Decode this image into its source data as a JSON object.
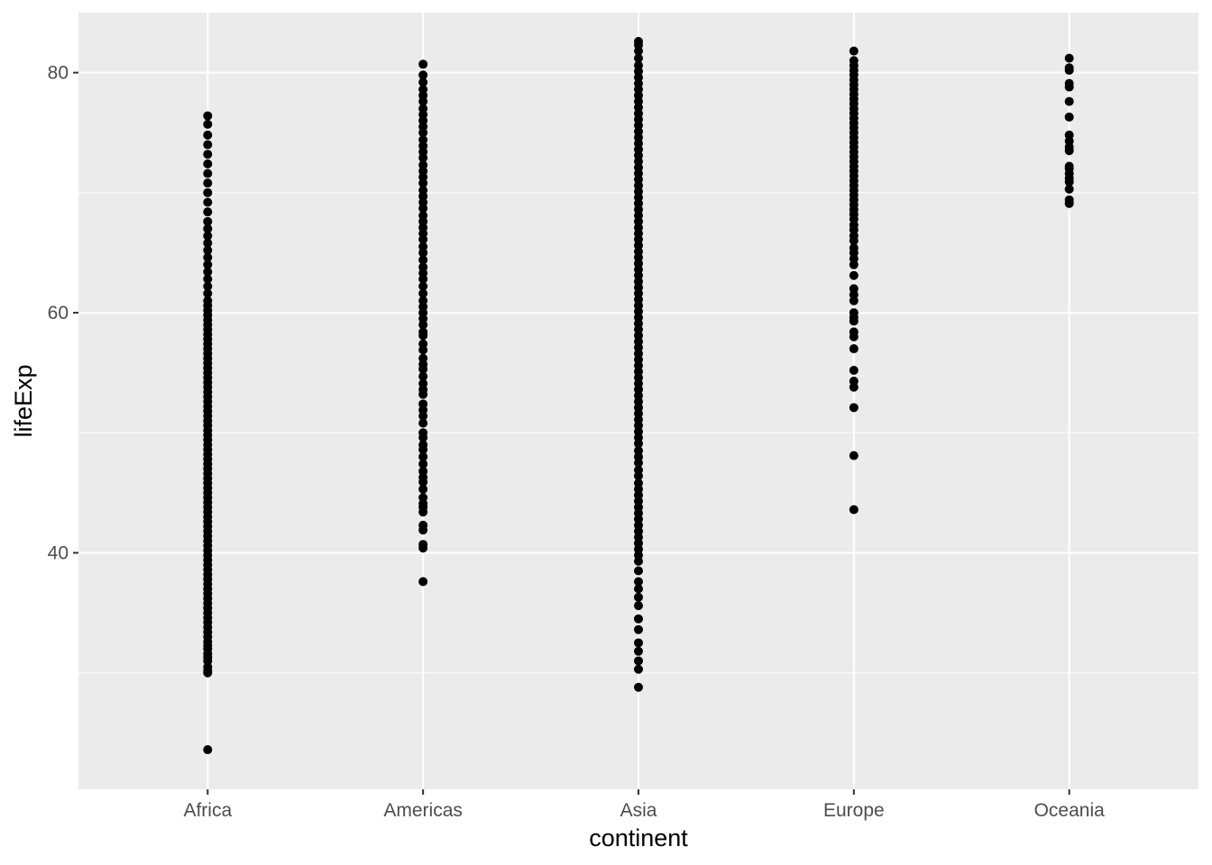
{
  "chart_data": {
    "type": "scatter",
    "title": "",
    "xlabel": "continent",
    "ylabel": "lifeExp",
    "x_scale": "categorical",
    "categories": [
      "Africa",
      "Americas",
      "Asia",
      "Europe",
      "Oceania"
    ],
    "ylim": [
      20.3,
      85.0
    ],
    "y_ticks": [
      40,
      60,
      80
    ],
    "y_tick_labels": [
      "40",
      "60",
      "80"
    ],
    "grid": true,
    "legend": "none",
    "theme": "grey panel with white gridlines",
    "colors": {
      "panel": "#ebebeb",
      "grid": "#ffffff",
      "points": "#000000",
      "tick_text": "#4d4d4d"
    },
    "series": [
      {
        "category": "Africa",
        "values": [
          23.6,
          30.0,
          30.2,
          30.5,
          31.0,
          31.3,
          31.6,
          32.0,
          32.3,
          32.6,
          33.0,
          33.4,
          33.8,
          34.2,
          34.6,
          35.0,
          35.4,
          35.8,
          36.2,
          36.6,
          37.0,
          37.4,
          37.8,
          38.2,
          38.6,
          39.0,
          39.4,
          39.8,
          40.2,
          40.6,
          41.0,
          41.4,
          41.8,
          42.2,
          42.6,
          43.0,
          43.4,
          43.8,
          44.2,
          44.6,
          45.0,
          45.4,
          45.8,
          46.2,
          46.6,
          47.0,
          47.4,
          47.8,
          48.2,
          48.6,
          49.0,
          49.4,
          49.8,
          50.2,
          50.6,
          51.0,
          51.4,
          51.8,
          52.2,
          52.6,
          53.0,
          53.4,
          53.8,
          54.2,
          54.6,
          55.0,
          55.4,
          55.8,
          56.2,
          56.6,
          57.0,
          57.4,
          57.8,
          58.2,
          58.6,
          59.0,
          59.4,
          59.8,
          60.2,
          60.6,
          61.0,
          61.6,
          62.2,
          62.8,
          63.4,
          64.0,
          64.6,
          65.2,
          65.8,
          66.4,
          67.0,
          67.6,
          68.4,
          69.2,
          70.0,
          70.8,
          71.6,
          72.4,
          73.2,
          74.0,
          74.8,
          75.7,
          76.4
        ]
      },
      {
        "category": "Americas",
        "values": [
          37.6,
          40.4,
          40.7,
          41.9,
          42.3,
          43.4,
          43.8,
          44.1,
          44.6,
          45.3,
          45.9,
          46.3,
          46.8,
          47.4,
          48.0,
          48.6,
          49.0,
          49.6,
          50.0,
          50.8,
          51.4,
          51.9,
          52.4,
          53.2,
          53.6,
          54.1,
          54.7,
          55.3,
          55.7,
          56.2,
          56.9,
          57.4,
          58.1,
          58.4,
          59.0,
          59.5,
          60.0,
          60.5,
          61.0,
          61.6,
          62.2,
          62.8,
          63.3,
          63.8,
          64.4,
          65.0,
          65.5,
          66.1,
          66.6,
          67.1,
          67.6,
          68.1,
          68.7,
          69.2,
          69.7,
          70.2,
          70.8,
          71.3,
          71.8,
          72.3,
          72.9,
          73.4,
          73.9,
          74.4,
          75.0,
          75.5,
          76.0,
          76.5,
          77.0,
          77.6,
          78.1,
          78.6,
          79.2,
          79.8,
          80.7
        ]
      },
      {
        "category": "Asia",
        "values": [
          28.8,
          30.3,
          31.0,
          31.8,
          32.5,
          33.6,
          34.5,
          35.6,
          36.3,
          37.0,
          37.6,
          38.5,
          39.3,
          39.8,
          40.3,
          40.8,
          41.3,
          41.8,
          42.3,
          42.8,
          43.3,
          43.8,
          44.3,
          44.8,
          45.3,
          45.8,
          46.4,
          46.9,
          47.5,
          48.0,
          48.5,
          49.1,
          49.6,
          50.1,
          50.6,
          51.1,
          51.6,
          52.1,
          52.6,
          53.1,
          53.6,
          54.1,
          54.6,
          55.1,
          55.6,
          56.1,
          56.6,
          57.1,
          57.6,
          58.1,
          58.6,
          59.1,
          59.6,
          60.1,
          60.6,
          61.1,
          61.6,
          62.1,
          62.6,
          63.1,
          63.6,
          64.1,
          64.6,
          65.1,
          65.6,
          66.1,
          66.6,
          67.1,
          67.6,
          68.1,
          68.6,
          69.1,
          69.6,
          70.1,
          70.6,
          71.1,
          71.6,
          72.1,
          72.6,
          73.1,
          73.6,
          74.1,
          74.6,
          75.1,
          75.6,
          76.1,
          76.6,
          77.1,
          77.6,
          78.1,
          78.6,
          79.1,
          79.6,
          80.1,
          80.6,
          81.2,
          81.8,
          82.3,
          82.6
        ]
      },
      {
        "category": "Europe",
        "values": [
          43.6,
          48.1,
          52.1,
          53.8,
          54.3,
          55.2,
          57.0,
          58.0,
          58.4,
          59.3,
          59.6,
          60.0,
          61.0,
          61.5,
          62.0,
          63.1,
          64.0,
          64.5,
          65.0,
          65.4,
          66.0,
          66.4,
          66.9,
          67.3,
          67.8,
          68.2,
          68.6,
          69.0,
          69.4,
          69.8,
          70.2,
          70.6,
          71.0,
          71.4,
          71.8,
          72.2,
          72.6,
          73.0,
          73.4,
          73.8,
          74.2,
          74.6,
          75.0,
          75.4,
          75.8,
          76.2,
          76.6,
          77.0,
          77.4,
          77.8,
          78.2,
          78.6,
          79.0,
          79.4,
          79.8,
          80.2,
          80.6,
          81.0,
          81.8
        ]
      },
      {
        "category": "Oceania",
        "values": [
          69.1,
          69.4,
          70.3,
          70.9,
          71.2,
          71.6,
          72.0,
          72.2,
          73.5,
          73.8,
          74.3,
          74.8,
          76.3,
          77.6,
          78.8,
          79.1,
          80.2,
          80.4,
          81.2
        ]
      }
    ]
  }
}
